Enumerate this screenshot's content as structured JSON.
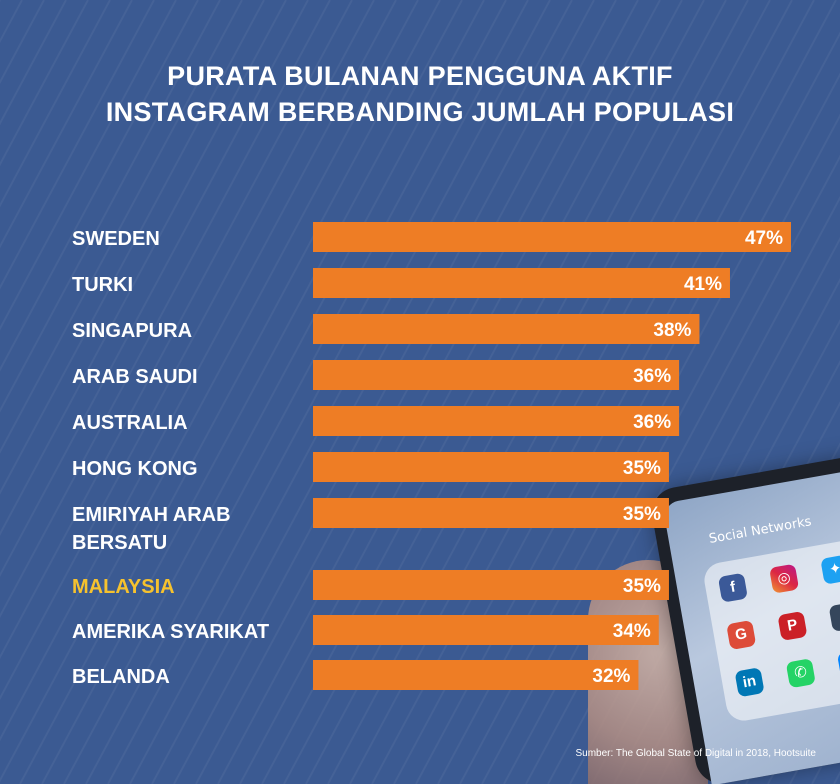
{
  "title_lines": [
    "PURATA BULANAN PENGGUNA AKTIF",
    "INSTAGRAM BERBANDING JUMLAH POPULASI"
  ],
  "source": "Sumber: The Global State of Digital in 2018, Hootsuite",
  "phone": {
    "folder_label": "Social Networks"
  },
  "colors": {
    "background": "#3b5a92",
    "bar": "#ee7d25",
    "label": "#ffffff",
    "highlight_label": "#f6c22e"
  },
  "chart_data": {
    "type": "bar",
    "orientation": "horizontal",
    "categories": [
      [
        "SWEDEN"
      ],
      [
        "TURKI"
      ],
      [
        "SINGAPURA"
      ],
      [
        "ARAB SAUDI"
      ],
      [
        "AUSTRALIA"
      ],
      [
        "HONG KONG"
      ],
      [
        "EMIRIYAH ARAB",
        "BERSATU"
      ],
      [
        "MALAYSIA"
      ],
      [
        "AMERIKA SYARIKAT"
      ],
      [
        "BELANDA"
      ]
    ],
    "values": [
      47,
      41,
      38,
      36,
      36,
      35,
      35,
      35,
      34,
      32
    ],
    "value_labels": [
      "47%",
      "41%",
      "38%",
      "36%",
      "36%",
      "35%",
      "35%",
      "35%",
      "34%",
      "32%"
    ],
    "unit": "%",
    "highlight_index": 7,
    "grid": false,
    "legend": "none"
  }
}
